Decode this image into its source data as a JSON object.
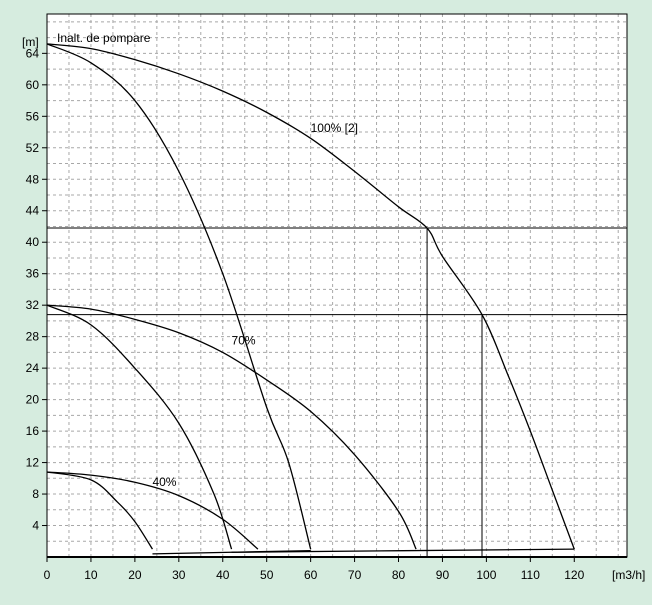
{
  "colors": {
    "background": "#d6ecdf",
    "plot_background": "#ffffff",
    "grid": "#a8a8a8",
    "axis": "#000000",
    "curves": "#000000"
  },
  "chart_data": {
    "type": "line",
    "title": "Inalt. de pompare",
    "ylabel": "[m]",
    "xlabel": "[m3/h]",
    "xlim": [
      0,
      132
    ],
    "ylim": [
      0,
      69
    ],
    "x_ticks": [
      0,
      10,
      20,
      30,
      40,
      50,
      60,
      70,
      80,
      90,
      100,
      110,
      120
    ],
    "y_ticks": [
      4,
      8,
      12,
      16,
      20,
      24,
      28,
      32,
      36,
      40,
      44,
      48,
      52,
      56,
      60,
      64
    ],
    "grid": true,
    "horizontal_reference_lines": [
      41.8,
      30.8
    ],
    "vertical_reference_lines": [
      {
        "x": 86.5,
        "y_top": 41.8
      },
      {
        "x": 99,
        "y_top": 30.8
      }
    ],
    "curve_labels": [
      {
        "text": "100% [2]",
        "x": 60,
        "y": 54
      },
      {
        "text": "70%",
        "x": 42,
        "y": 27
      },
      {
        "text": "40%",
        "x": 24,
        "y": 9
      }
    ],
    "series": [
      {
        "points": [
          [
            0,
            65.2
          ],
          [
            10,
            64.6
          ],
          [
            20,
            63.2
          ],
          [
            30,
            61.4
          ],
          [
            40,
            59.2
          ],
          [
            50,
            56.5
          ],
          [
            60,
            53.2
          ],
          [
            70,
            49
          ],
          [
            80,
            44.5
          ],
          [
            86.5,
            41.8
          ],
          [
            90,
            38.2
          ],
          [
            99,
            30.8
          ],
          [
            105,
            23
          ],
          [
            110,
            16
          ],
          [
            115,
            8.5
          ],
          [
            120,
            1
          ]
        ]
      },
      {
        "points": [
          [
            0,
            65.2
          ],
          [
            10,
            62.8
          ],
          [
            20,
            58
          ],
          [
            30,
            49
          ],
          [
            40,
            36
          ],
          [
            50,
            19
          ],
          [
            55,
            12
          ],
          [
            60,
            1
          ]
        ]
      },
      {
        "points": [
          [
            0,
            32
          ],
          [
            10,
            31.5
          ],
          [
            20,
            30.2
          ],
          [
            30,
            28.5
          ],
          [
            40,
            26
          ],
          [
            50,
            22.5
          ],
          [
            60,
            18.5
          ],
          [
            70,
            13
          ],
          [
            80,
            5.8
          ],
          [
            84,
            1
          ]
        ]
      },
      {
        "points": [
          [
            0,
            32
          ],
          [
            10,
            29.5
          ],
          [
            20,
            24
          ],
          [
            30,
            17
          ],
          [
            38,
            8
          ],
          [
            42,
            1
          ]
        ]
      },
      {
        "points": [
          [
            0,
            10.8
          ],
          [
            10,
            10.4
          ],
          [
            20,
            9.5
          ],
          [
            30,
            7.8
          ],
          [
            40,
            4.8
          ],
          [
            48,
            1
          ]
        ]
      },
      {
        "points": [
          [
            0,
            10.8
          ],
          [
            10,
            9.8
          ],
          [
            16,
            7
          ],
          [
            20,
            4.5
          ],
          [
            24,
            1
          ]
        ]
      },
      {
        "points": [
          [
            24,
            0.4
          ],
          [
            60,
            0.8
          ]
        ]
      },
      {
        "points": [
          [
            42,
            0.6
          ],
          [
            120,
            1
          ]
        ]
      }
    ]
  }
}
